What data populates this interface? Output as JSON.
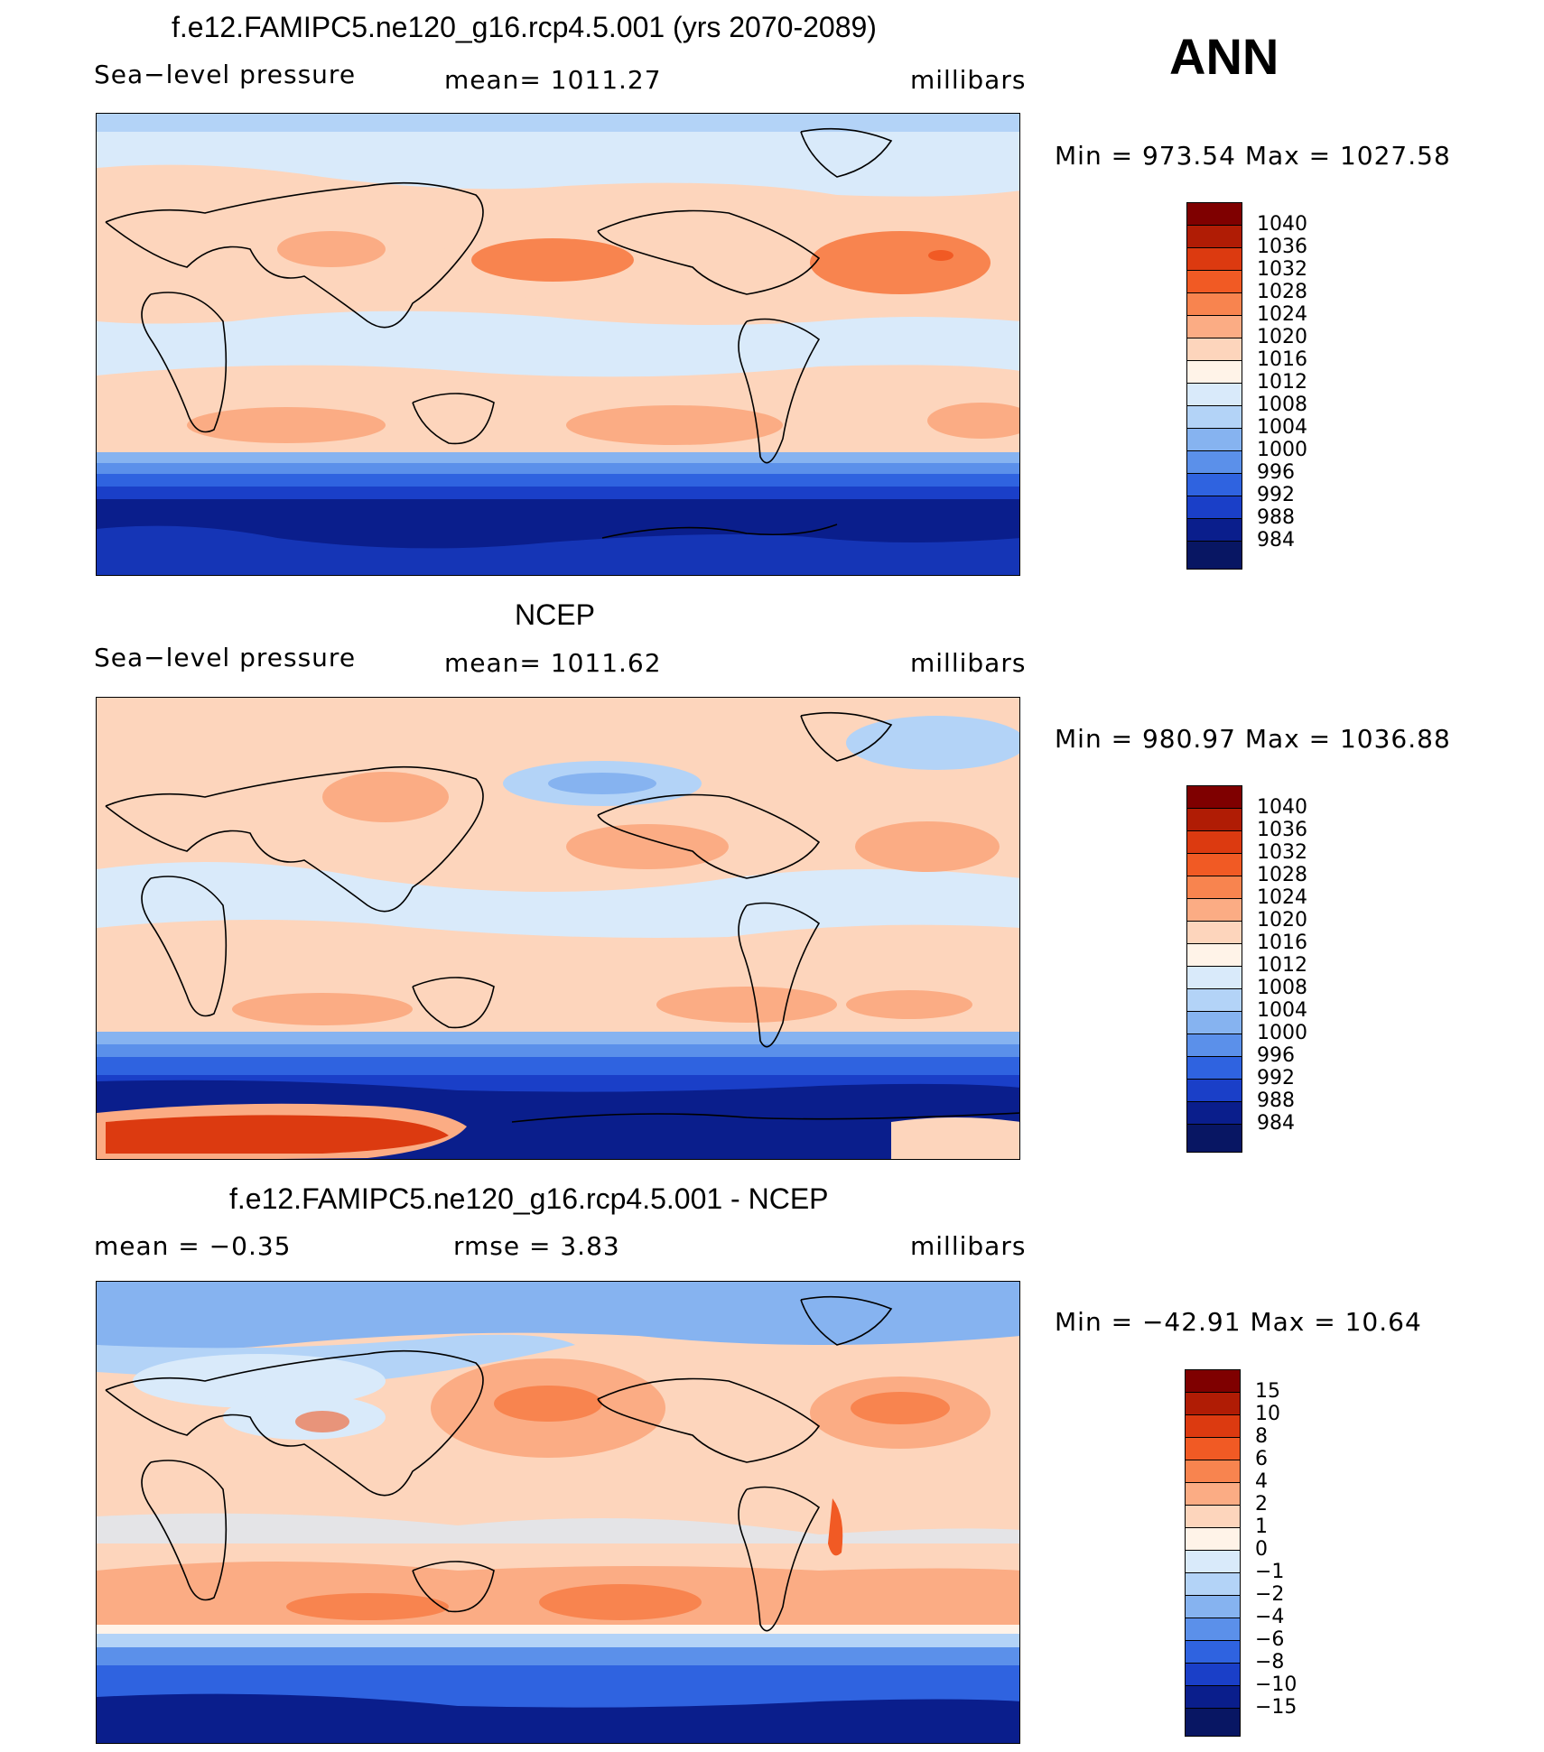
{
  "panels": [
    {
      "title": "f.e12.FAMIPC5.ne120_g16.rcp4.5.001 (yrs 2070-2089)",
      "left": "Sea−level  pressure",
      "center": "mean=  1011.27",
      "right": "millibars",
      "minmax": "Min  =  973.54  Max  =  1027.58",
      "levels": [
        "1040",
        "1036",
        "1032",
        "1028",
        "1024",
        "1020",
        "1016",
        "1012",
        "1008",
        "1004",
        "1000",
        "996",
        "992",
        "988",
        "984"
      ]
    },
    {
      "title": "NCEP",
      "left": "Sea−level  pressure",
      "center": "mean=  1011.62",
      "right": "millibars",
      "minmax": "Min  =  980.97  Max  =  1036.88",
      "levels": [
        "1040",
        "1036",
        "1032",
        "1028",
        "1024",
        "1020",
        "1016",
        "1012",
        "1008",
        "1004",
        "1000",
        "996",
        "992",
        "988",
        "984"
      ]
    },
    {
      "title": "f.e12.FAMIPC5.ne120_g16.rcp4.5.001 - NCEP",
      "left": "mean  =    −0.35",
      "center": "rmse  =     3.83",
      "right": "millibars",
      "minmax": "Min  =  −42.91  Max  =    10.64",
      "levels": [
        "15",
        "10",
        "8",
        "6",
        "4",
        "2",
        "1",
        "0",
        "−1",
        "−2",
        "−4",
        "−6",
        "−8",
        "−10",
        "−15"
      ]
    }
  ],
  "season": "ANN",
  "colorbar_colors": [
    "#7f0000",
    "#b01c05",
    "#dc3a10",
    "#f15a24",
    "#f8844f",
    "#fbac84",
    "#fdd5bc",
    "#fff3e8",
    "#d9eafa",
    "#b3d3f7",
    "#86b3f0",
    "#5b90ea",
    "#2f63e0",
    "#1a3fc8",
    "#0a1e8c"
  ]
}
